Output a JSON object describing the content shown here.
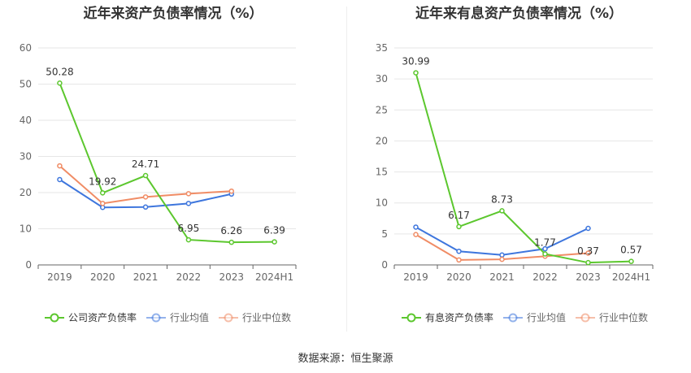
{
  "source_text": "数据来源：恒生聚源",
  "chart_data": [
    {
      "type": "line",
      "title": "近年来资产负债率情况（%）",
      "categories": [
        "2019",
        "2020",
        "2021",
        "2022",
        "2023",
        "2024H1"
      ],
      "ylim": [
        0,
        60
      ],
      "yticks": [
        0,
        10,
        20,
        30,
        40,
        50,
        60
      ],
      "grid": true,
      "legend_position": "bottom",
      "series": [
        {
          "name": "公司资产负债率",
          "color": "#5cc72e",
          "values": [
            50.28,
            19.92,
            24.71,
            6.95,
            6.26,
            6.39
          ],
          "labels": [
            "50.28",
            "19.92",
            "24.71",
            "6.95",
            "6.26",
            "6.39"
          ]
        },
        {
          "name": "行业均值",
          "color": "#3e76dd",
          "values": [
            23.6,
            15.9,
            16.0,
            17.0,
            19.6,
            null
          ]
        },
        {
          "name": "行业中位数",
          "color": "#f08c65",
          "values": [
            27.4,
            17.0,
            18.8,
            19.7,
            20.4,
            null
          ]
        }
      ]
    },
    {
      "type": "line",
      "title": "近年来有息资产负债率情况（%）",
      "categories": [
        "2019",
        "2020",
        "2021",
        "2022",
        "2023",
        "2024H1"
      ],
      "ylim": [
        0,
        35
      ],
      "yticks": [
        0,
        5,
        10,
        15,
        20,
        25,
        30,
        35
      ],
      "grid": true,
      "legend_position": "bottom",
      "series": [
        {
          "name": "有息资产负债率",
          "color": "#5cc72e",
          "values": [
            30.99,
            6.17,
            8.73,
            1.77,
            0.37,
            0.57
          ],
          "labels": [
            "30.99",
            "6.17",
            "8.73",
            "1.77",
            "0.37",
            "0.57"
          ]
        },
        {
          "name": "行业均值",
          "color": "#3e76dd",
          "values": [
            6.1,
            2.2,
            1.6,
            2.6,
            5.9,
            null
          ]
        },
        {
          "name": "行业中位数",
          "color": "#f08c65",
          "values": [
            4.9,
            0.8,
            0.9,
            1.4,
            1.9,
            null
          ]
        }
      ]
    }
  ]
}
